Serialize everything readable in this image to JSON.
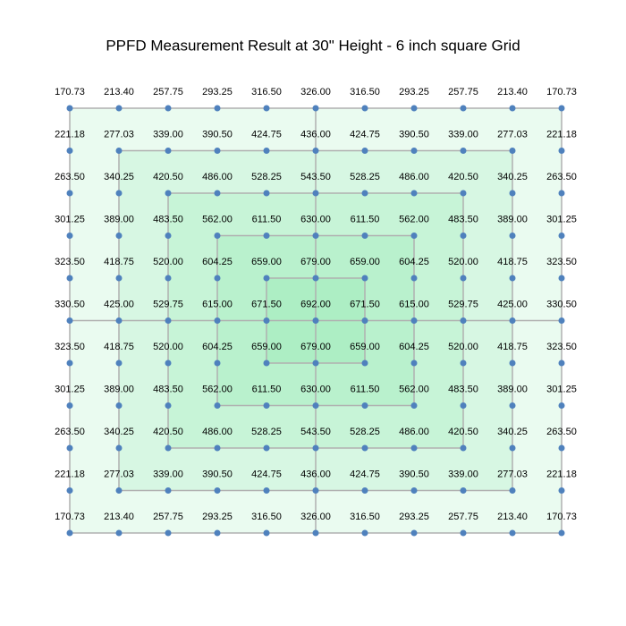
{
  "chart_data": {
    "type": "grid_map",
    "title": "PPFD Measurement Result at 30\" Height - 6 inch square Grid",
    "color": "#4f81bd",
    "values": [
      [
        170.73,
        213.4,
        257.75,
        293.25,
        316.5,
        326,
        316.5,
        293.25,
        257.75,
        213.4,
        170.73
      ],
      [
        221.18,
        277.03,
        339,
        390.5,
        424.75,
        436,
        424.75,
        390.5,
        339,
        277.03,
        221.18
      ],
      [
        263.5,
        340.25,
        420.5,
        486,
        528.25,
        543.5,
        528.25,
        486,
        420.5,
        340.25,
        263.5
      ],
      [
        301.25,
        389,
        483.5,
        562,
        611.5,
        630,
        611.5,
        562,
        483.5,
        389,
        301.25
      ],
      [
        323.5,
        418.75,
        520,
        604.25,
        659,
        679,
        659,
        604.25,
        520,
        418.75,
        323.5
      ],
      [
        330.5,
        425,
        529.75,
        615,
        671.5,
        692,
        671.5,
        615,
        529.75,
        425,
        330.5
      ],
      [
        323.5,
        418.75,
        520,
        604.25,
        659,
        679,
        659,
        604.25,
        520,
        418.75,
        323.5
      ],
      [
        301.25,
        389,
        483.5,
        562,
        611.5,
        630,
        611.5,
        562,
        483.5,
        389,
        301.25
      ],
      [
        263.5,
        340.25,
        420.5,
        486,
        528.25,
        543.5,
        528.25,
        486,
        420.5,
        340.25,
        263.5
      ],
      [
        221.18,
        277.03,
        339,
        390.5,
        424.75,
        436,
        424.75,
        390.5,
        339,
        277.03,
        221.18
      ],
      [
        170.73,
        213.4,
        257.75,
        293.25,
        316.5,
        326,
        316.5,
        293.25,
        257.75,
        213.4,
        170.73
      ]
    ],
    "value_labels": [
      [
        "170.73",
        "213.40",
        "257.75",
        "293.25",
        "316.50",
        "326.00",
        "316.50",
        "293.25",
        "257.75",
        "213.40",
        "170.73"
      ],
      [
        "221.18",
        "277.03",
        "339.00",
        "390.50",
        "424.75",
        "436.00",
        "424.75",
        "390.50",
        "339.00",
        "277.03",
        "221.18"
      ],
      [
        "263.50",
        "340.25",
        "420.50",
        "486.00",
        "528.25",
        "543.50",
        "528.25",
        "486.00",
        "420.50",
        "340.25",
        "263.50"
      ],
      [
        "301.25",
        "389.00",
        "483.50",
        "562.00",
        "611.50",
        "630.00",
        "611.50",
        "562.00",
        "483.50",
        "389.00",
        "301.25"
      ],
      [
        "323.50",
        "418.75",
        "520.00",
        "604.25",
        "659.00",
        "679.00",
        "659.00",
        "604.25",
        "520.00",
        "418.75",
        "323.50"
      ],
      [
        "330.50",
        "425.00",
        "529.75",
        "615.00",
        "671.50",
        "692.00",
        "671.50",
        "615.00",
        "529.75",
        "425.00",
        "330.50"
      ],
      [
        "323.50",
        "418.75",
        "520.00",
        "604.25",
        "659.00",
        "679.00",
        "659.00",
        "604.25",
        "520.00",
        "418.75",
        "323.50"
      ],
      [
        "301.25",
        "389.00",
        "483.50",
        "562.00",
        "611.50",
        "630.00",
        "611.50",
        "562.00",
        "483.50",
        "389.00",
        "301.25"
      ],
      [
        "263.50",
        "340.25",
        "420.50",
        "486.00",
        "528.25",
        "543.50",
        "528.25",
        "486.00",
        "420.50",
        "340.25",
        "263.50"
      ],
      [
        "221.18",
        "277.03",
        "339.00",
        "390.50",
        "424.75",
        "436.00",
        "424.75",
        "390.50",
        "339.00",
        "277.03",
        "221.18"
      ],
      [
        "170.73",
        "213.40",
        "257.75",
        "293.25",
        "316.50",
        "326.00",
        "316.50",
        "293.25",
        "257.75",
        "213.40",
        "170.73"
      ]
    ]
  }
}
